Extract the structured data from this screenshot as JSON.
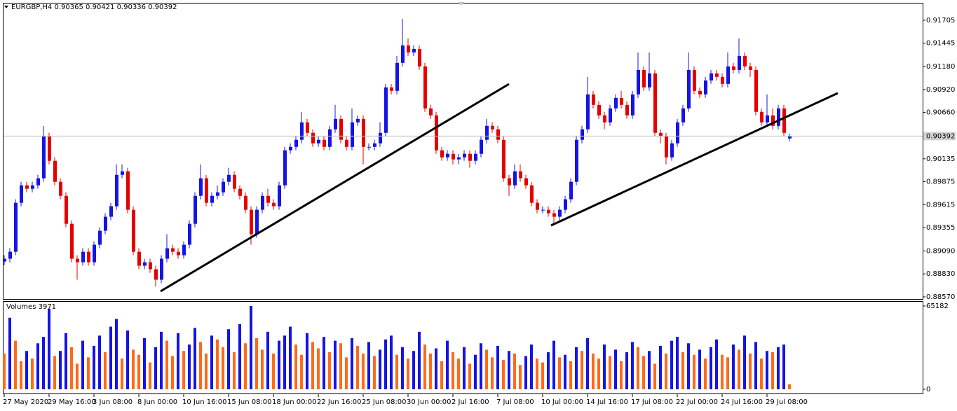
{
  "chart_data": [
    {
      "type": "candlestick",
      "title": "EURGBP,H4",
      "up_color": "#1414e6",
      "down_color": "#e60000",
      "grid": false,
      "ylim": [
        0.88546,
        0.91903
      ],
      "yticks": [
        0.91705,
        0.91445,
        {
          "value": 0.9118,
          "label": "0.91180"
        },
        {
          "value": 0.9092,
          "label": "0.90920"
        },
        {
          "value": 0.9066,
          "label": "0.90660"
        },
        0.90135,
        0.89875,
        0.89615,
        0.89355,
        {
          "value": 0.8909,
          "label": "0.89090"
        },
        {
          "value": 0.8883,
          "label": "0.88830"
        },
        {
          "value": 0.8857,
          "label": "0.88570"
        }
      ],
      "categories": [
        "27 May 2020",
        null,
        null,
        null,
        null,
        null,
        null,
        null,
        "29 May 16:00",
        null,
        null,
        null,
        null,
        null,
        null,
        null,
        "3 Jun 08:00",
        null,
        null,
        null,
        null,
        null,
        null,
        null,
        "8 Jun 00:00",
        null,
        null,
        null,
        null,
        null,
        null,
        null,
        "10 Jun 16:00",
        null,
        null,
        null,
        null,
        null,
        null,
        null,
        "15 Jun 08:00",
        null,
        null,
        null,
        null,
        null,
        null,
        null,
        "18 Jun 00:00",
        null,
        null,
        null,
        null,
        null,
        null,
        null,
        "22 Jun 16:00",
        null,
        null,
        null,
        null,
        null,
        null,
        null,
        "25 Jun 08:00",
        null,
        null,
        null,
        null,
        null,
        null,
        null,
        "30 Jun 00:00",
        null,
        null,
        null,
        null,
        null,
        null,
        null,
        "2 Jul 16:00",
        null,
        null,
        null,
        null,
        null,
        null,
        null,
        "7 Jul 08:00",
        null,
        null,
        null,
        null,
        null,
        null,
        null,
        "10 Jul 00:00",
        null,
        null,
        null,
        null,
        null,
        null,
        null,
        "14 Jul 16:00",
        null,
        null,
        null,
        null,
        null,
        null,
        null,
        "17 Jul 08:00",
        null,
        null,
        null,
        null,
        null,
        null,
        null,
        "22 Jul 00:00",
        null,
        null,
        null,
        null,
        null,
        null,
        null,
        "24 Jul 16:00",
        null,
        null,
        null,
        null,
        null,
        null,
        null,
        "29 Jul 08:00",
        null,
        null,
        null,
        null
      ],
      "open": [
        0.8897,
        0.89002,
        0.89081,
        0.89636,
        0.89834,
        0.89795,
        0.89834,
        0.89914,
        0.90389,
        0.90112,
        0.89874,
        0.89715,
        0.89398,
        0.89002,
        0.88962,
        0.89081,
        0.88962,
        0.89161,
        0.89319,
        0.89478,
        0.89597,
        0.89953,
        0.89993,
        0.89557,
        0.89081,
        0.88923,
        0.88962,
        0.88883,
        0.88764,
        0.89002,
        0.89121,
        0.89081,
        0.89042,
        0.89161,
        0.89398,
        0.89715,
        0.89914,
        0.89636,
        0.89715,
        0.89755,
        0.89874,
        0.89953,
        0.89795,
        0.89715,
        0.89557,
        0.8928,
        0.89557,
        0.89715,
        0.89636,
        0.89597,
        0.89834,
        0.90231,
        0.9027,
        0.9035,
        0.90548,
        0.90429,
        0.9031,
        0.9035,
        0.9027,
        0.90469,
        0.90587,
        0.9035,
        0.9027,
        0.90548,
        0.90587,
        0.9027,
        0.9027,
        0.9031,
        0.90429,
        0.90944,
        0.90905,
        0.91222,
        0.9142,
        0.91341,
        0.9138,
        0.91182,
        0.90706,
        0.90627,
        0.90231,
        0.90151,
        0.90191,
        0.90128,
        0.90151,
        0.90191,
        0.90112,
        0.90191,
        0.9035,
        0.90508,
        0.90469,
        0.9035,
        0.89914,
        0.89834,
        0.89993,
        0.89914,
        0.89834,
        0.89636,
        0.89557,
        0.89557,
        0.89517,
        0.89478,
        0.89557,
        0.89676,
        0.89874,
        0.9035,
        0.90469,
        0.90865,
        0.90746,
        0.90627,
        0.90548,
        0.90706,
        0.90825,
        0.90746,
        0.90627,
        0.90865,
        0.91142,
        0.90944,
        0.91103,
        0.90429,
        0.90389,
        0.90151,
        0.9031,
        0.90548,
        0.90706,
        0.91142,
        0.90905,
        0.90865,
        0.91023,
        0.91103,
        0.91063,
        0.90984,
        0.91182,
        0.91142,
        0.91301,
        0.91182,
        0.91142,
        0.90667,
        0.90548,
        0.90627,
        0.90508,
        0.90706,
        0.90365
      ],
      "high": [
        0.89042,
        0.89121,
        0.89676,
        0.89874,
        0.89874,
        0.89874,
        0.89953,
        0.90508,
        0.90429,
        0.90151,
        0.89914,
        0.89755,
        0.89438,
        0.89042,
        0.89121,
        0.89121,
        0.892,
        0.89358,
        0.89517,
        0.89636,
        0.90072,
        0.90072,
        0.90033,
        0.89597,
        0.89121,
        0.89002,
        0.89002,
        0.88923,
        0.89042,
        0.8928,
        0.89161,
        0.89121,
        0.892,
        0.89438,
        0.89755,
        0.90072,
        0.89953,
        0.89755,
        0.89834,
        0.89914,
        0.90033,
        0.89993,
        0.89834,
        0.89755,
        0.89597,
        0.89597,
        0.89755,
        0.89795,
        0.89676,
        0.89874,
        0.9027,
        0.9031,
        0.90389,
        0.90667,
        0.90587,
        0.90469,
        0.90389,
        0.90389,
        0.90508,
        0.90746,
        0.90627,
        0.90389,
        0.90706,
        0.90627,
        0.90627,
        0.9031,
        0.9035,
        0.90548,
        0.90984,
        0.90984,
        0.91301,
        0.91721,
        0.91499,
        0.9142,
        0.9142,
        0.91222,
        0.90746,
        0.90667,
        0.9027,
        0.90231,
        0.90231,
        0.90191,
        0.90231,
        0.90231,
        0.90231,
        0.90389,
        0.90587,
        0.90548,
        0.90508,
        0.90389,
        0.89953,
        0.90072,
        0.90072,
        0.89953,
        0.89874,
        0.89676,
        0.89597,
        0.89597,
        0.89557,
        0.89597,
        0.89715,
        0.89914,
        0.90389,
        0.90508,
        0.91063,
        0.90905,
        0.90786,
        0.90667,
        0.90746,
        0.90865,
        0.90905,
        0.90786,
        0.90905,
        0.91341,
        0.91182,
        0.91341,
        0.91142,
        0.90469,
        0.90429,
        0.9035,
        0.90587,
        0.90746,
        0.91341,
        0.91182,
        0.90944,
        0.91063,
        0.91142,
        0.91142,
        0.91103,
        0.91341,
        0.91222,
        0.91499,
        0.91341,
        0.91222,
        0.91182,
        0.90706,
        0.90865,
        0.90706,
        0.90746,
        0.90746,
        0.90421
      ],
      "low": [
        0.8893,
        0.88962,
        0.89042,
        0.89597,
        0.89755,
        0.89755,
        0.89795,
        0.89874,
        0.90072,
        0.89834,
        0.89676,
        0.89358,
        0.88962,
        0.88764,
        0.88923,
        0.88923,
        0.88923,
        0.89121,
        0.8928,
        0.89438,
        0.89557,
        0.89914,
        0.89517,
        0.89042,
        0.88883,
        0.88883,
        0.88843,
        0.88685,
        0.88725,
        0.88962,
        0.89042,
        0.89002,
        0.89002,
        0.89121,
        0.89358,
        0.89676,
        0.89597,
        0.89597,
        0.89676,
        0.89715,
        0.89834,
        0.89755,
        0.89676,
        0.89517,
        0.89161,
        0.8924,
        0.89517,
        0.89597,
        0.89557,
        0.89557,
        0.89795,
        0.90191,
        0.90231,
        0.9031,
        0.90389,
        0.9027,
        0.9027,
        0.90231,
        0.90231,
        0.90429,
        0.9031,
        0.90231,
        0.90231,
        0.90508,
        0.90072,
        0.90231,
        0.90231,
        0.9027,
        0.90389,
        0.90865,
        0.90865,
        0.91182,
        0.91301,
        0.91301,
        0.91142,
        0.90667,
        0.90587,
        0.90191,
        0.90112,
        0.90112,
        0.90072,
        0.90072,
        0.90112,
        0.90033,
        0.90072,
        0.90151,
        0.9031,
        0.90429,
        0.9031,
        0.89874,
        0.89715,
        0.89795,
        0.89874,
        0.89795,
        0.89597,
        0.89517,
        0.89517,
        0.89478,
        0.89398,
        0.89438,
        0.89517,
        0.89636,
        0.89834,
        0.9031,
        0.90429,
        0.90706,
        0.90587,
        0.90469,
        0.90508,
        0.90667,
        0.90706,
        0.90587,
        0.90587,
        0.90825,
        0.90905,
        0.90905,
        0.90389,
        0.9031,
        0.90072,
        0.90112,
        0.9027,
        0.90508,
        0.90667,
        0.90865,
        0.90825,
        0.90825,
        0.90984,
        0.91023,
        0.90944,
        0.90944,
        0.91103,
        0.91103,
        0.91142,
        0.91063,
        0.90627,
        0.90508,
        0.90508,
        0.90469,
        0.90469,
        0.90389,
        0.90336
      ],
      "close": [
        0.89002,
        0.89081,
        0.89636,
        0.89834,
        0.89795,
        0.89834,
        0.89914,
        0.90389,
        0.90112,
        0.89874,
        0.89715,
        0.89398,
        0.89002,
        0.88962,
        0.89081,
        0.88962,
        0.89161,
        0.89319,
        0.89478,
        0.89597,
        0.89953,
        0.89993,
        0.89557,
        0.89081,
        0.88923,
        0.88962,
        0.88883,
        0.88764,
        0.89002,
        0.89121,
        0.89081,
        0.89042,
        0.89161,
        0.89398,
        0.89715,
        0.89914,
        0.89636,
        0.89715,
        0.89755,
        0.89874,
        0.89953,
        0.89795,
        0.89715,
        0.89557,
        0.8928,
        0.89557,
        0.89715,
        0.89636,
        0.89597,
        0.89834,
        0.90231,
        0.9027,
        0.9035,
        0.90548,
        0.90429,
        0.9031,
        0.9035,
        0.9027,
        0.90469,
        0.90587,
        0.9035,
        0.9027,
        0.90548,
        0.90587,
        0.9027,
        0.9027,
        0.9031,
        0.90429,
        0.90944,
        0.90905,
        0.91222,
        0.9142,
        0.91341,
        0.9138,
        0.91182,
        0.90706,
        0.90627,
        0.90231,
        0.90151,
        0.90191,
        0.90128,
        0.90151,
        0.90191,
        0.90112,
        0.90191,
        0.9035,
        0.90508,
        0.90469,
        0.9035,
        0.89914,
        0.89834,
        0.89993,
        0.89914,
        0.89834,
        0.89636,
        0.89557,
        0.89557,
        0.89517,
        0.89478,
        0.89557,
        0.89676,
        0.89874,
        0.9035,
        0.90469,
        0.90865,
        0.90746,
        0.90627,
        0.90548,
        0.90706,
        0.90825,
        0.90746,
        0.90627,
        0.90865,
        0.91142,
        0.90944,
        0.91103,
        0.90429,
        0.90389,
        0.90151,
        0.9031,
        0.90548,
        0.90706,
        0.91142,
        0.90905,
        0.90865,
        0.91023,
        0.91103,
        0.91063,
        0.90984,
        0.91182,
        0.91142,
        0.91301,
        0.91182,
        0.91142,
        0.90667,
        0.90548,
        0.90627,
        0.90508,
        0.90706,
        0.90429,
        0.90392
      ]
    },
    {
      "type": "volume",
      "title": "Volumes",
      "up_color": "#1414e6",
      "down_color": "#ff6a1a",
      "ylim": [
        0,
        65182
      ],
      "yticks": [
        65182,
        0
      ],
      "values": [
        28000,
        56000,
        38000,
        22000,
        30000,
        24000,
        36000,
        41000,
        63000,
        26000,
        30000,
        44000,
        33000,
        20000,
        38000,
        25000,
        34000,
        42000,
        29000,
        49000,
        55000,
        24000,
        46000,
        31000,
        27000,
        40000,
        21000,
        33000,
        45000,
        38000,
        26000,
        44000,
        30000,
        35000,
        48000,
        37000,
        28000,
        42000,
        39000,
        33000,
        47000,
        29000,
        51000,
        36000,
        65182,
        40000,
        31000,
        45000,
        28000,
        38000,
        42000,
        49000,
        35000,
        27000,
        44000,
        37000,
        32000,
        41000,
        29000,
        38000,
        36000,
        25000,
        40000,
        34000,
        28000,
        37000,
        26000,
        31000,
        39000,
        42000,
        27000,
        33000,
        24000,
        30000,
        45000,
        35000,
        28000,
        32000,
        22000,
        38000,
        29000,
        24000,
        33000,
        20000,
        27000,
        36000,
        31000,
        25000,
        34000,
        23000,
        30000,
        28000,
        19000,
        26000,
        35000,
        24000,
        21000,
        29000,
        38000,
        25000,
        27000,
        22000,
        33000,
        30000,
        40000,
        28000,
        24000,
        35000,
        26000,
        31000,
        22000,
        29000,
        37000,
        33000,
        26000,
        30000,
        20000,
        34000,
        28000,
        38000,
        41000,
        29000,
        36000,
        27000,
        31000,
        24000,
        33000,
        39000,
        27000,
        25000,
        35000,
        31000,
        42000,
        28000,
        37000,
        24000,
        30000,
        29000,
        33000,
        35000,
        3971
      ]
    }
  ]
}
